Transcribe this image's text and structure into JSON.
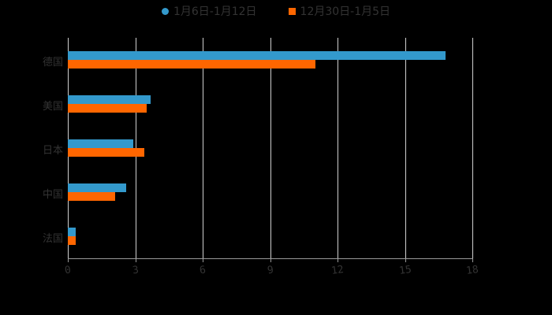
{
  "chart_data": {
    "type": "bar",
    "orientation": "horizontal",
    "title": "",
    "xlabel": "",
    "ylabel": "",
    "xlim": [
      0,
      18
    ],
    "x_ticks": [
      "0",
      "3",
      "6",
      "9",
      "12",
      "15",
      "18"
    ],
    "grid": true,
    "legend_position": "top",
    "categories": [
      "德国",
      "美国",
      "日本",
      "中国",
      "法国"
    ],
    "series": [
      {
        "name": "1月6日-1月12日",
        "color": "#3399cc",
        "values": [
          16.8,
          3.7,
          2.9,
          2.6,
          0.35
        ]
      },
      {
        "name": "12月30日-1月5日",
        "color": "#ff6600",
        "values": [
          11.0,
          3.5,
          3.4,
          2.1,
          0.35
        ]
      }
    ]
  },
  "legend": {
    "series_1": "1月6日-1月12日",
    "series_2": "12月30日-1月5日"
  },
  "colors": {
    "series_1": "#3399cc",
    "series_2": "#ff6600",
    "grid": "#d0d0d0",
    "text": "#333333"
  }
}
